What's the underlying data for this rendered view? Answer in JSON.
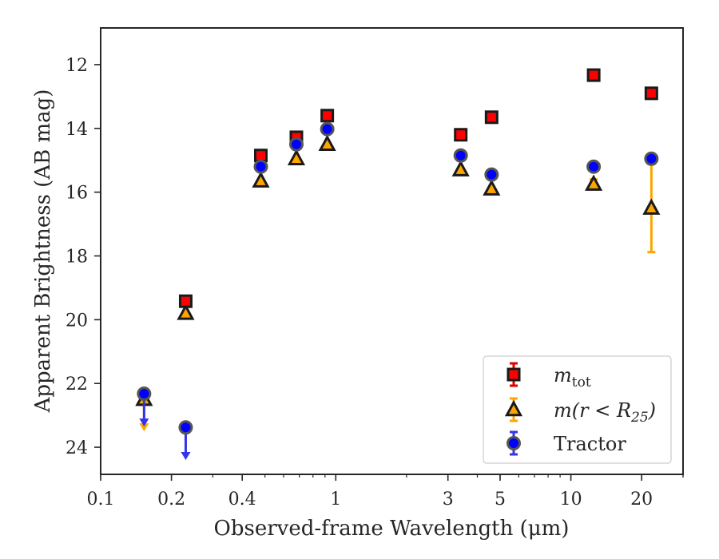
{
  "chart_data": {
    "type": "scatter",
    "xlabel": "Observed-frame Wavelength (μm)",
    "ylabel": "Apparent Brightness (AB mag)",
    "x_scale": "log",
    "xlim": [
      0.1,
      30
    ],
    "ylim": [
      24.85,
      10.85
    ],
    "y_inverted": true,
    "x_ticks": [
      {
        "value": 0.1,
        "label": "0.1"
      },
      {
        "value": 0.2,
        "label": "0.2"
      },
      {
        "value": 0.4,
        "label": "0.4"
      },
      {
        "value": 1,
        "label": "1"
      },
      {
        "value": 3,
        "label": "3"
      },
      {
        "value": 5,
        "label": "5"
      },
      {
        "value": 10,
        "label": "10"
      },
      {
        "value": 20,
        "label": "20"
      }
    ],
    "y_ticks": [
      {
        "value": 12,
        "label": "12"
      },
      {
        "value": 14,
        "label": "14"
      },
      {
        "value": 16,
        "label": "16"
      },
      {
        "value": 18,
        "label": "18"
      },
      {
        "value": 20,
        "label": "20"
      },
      {
        "value": 22,
        "label": "22"
      },
      {
        "value": 24,
        "label": "24"
      }
    ],
    "grid": false,
    "legend_position": "lower-right",
    "legend": [
      {
        "label": "m",
        "sub": "tot",
        "marker": "square"
      },
      {
        "label": "m(r < R",
        "sub": "25",
        "suffix": ")",
        "marker": "triangle"
      },
      {
        "label": "Tractor",
        "marker": "circle"
      }
    ],
    "series": [
      {
        "key": "mtot",
        "marker": "square",
        "fill": "#ff0000",
        "edge": "#1a1a1a",
        "errcolor": "#e00000",
        "points": [
          {
            "x": 0.23,
            "y": 19.42
          },
          {
            "x": 0.48,
            "y": 14.85
          },
          {
            "x": 0.68,
            "y": 14.28
          },
          {
            "x": 0.92,
            "y": 13.6
          },
          {
            "x": 3.4,
            "y": 14.2
          },
          {
            "x": 4.6,
            "y": 13.65
          },
          {
            "x": 12.5,
            "y": 12.33
          },
          {
            "x": 22,
            "y": 12.9
          }
        ]
      },
      {
        "key": "mR25",
        "marker": "triangle",
        "fill": "#ffa500",
        "edge": "#1a1a1a",
        "errcolor": "#ffa500",
        "points": [
          {
            "x": 0.153,
            "y": 22.5,
            "upper_limit": 23.45
          },
          {
            "x": 0.23,
            "y": 19.8
          },
          {
            "x": 0.48,
            "y": 15.65
          },
          {
            "x": 0.68,
            "y": 14.95
          },
          {
            "x": 0.92,
            "y": 14.5
          },
          {
            "x": 3.4,
            "y": 15.3
          },
          {
            "x": 4.6,
            "y": 15.9
          },
          {
            "x": 12.5,
            "y": 15.75,
            "err": 0.15
          },
          {
            "x": 22,
            "y": 16.5,
            "err_lo": 1.38,
            "err_hi": 1.38
          }
        ]
      },
      {
        "key": "tractor",
        "marker": "circle",
        "fill": "#0000ff",
        "edge": "#555555",
        "errcolor": "#3333ee",
        "points": [
          {
            "x": 0.153,
            "y": 22.32,
            "upper_limit": 23.3
          },
          {
            "x": 0.23,
            "y": 23.38,
            "upper_limit": 24.35
          },
          {
            "x": 0.48,
            "y": 15.2
          },
          {
            "x": 0.68,
            "y": 14.5
          },
          {
            "x": 0.92,
            "y": 14.02
          },
          {
            "x": 3.4,
            "y": 14.85
          },
          {
            "x": 4.6,
            "y": 15.45
          },
          {
            "x": 12.5,
            "y": 15.2
          },
          {
            "x": 22,
            "y": 14.95
          }
        ]
      }
    ]
  }
}
